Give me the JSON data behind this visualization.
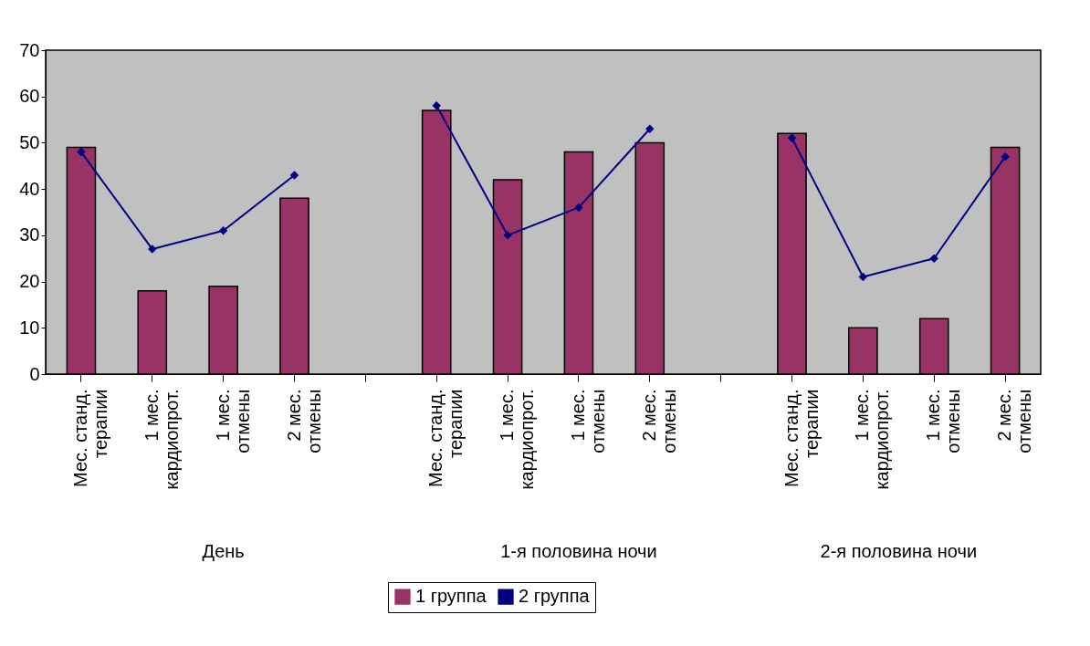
{
  "chart_data": {
    "type": "bar",
    "categories": [
      "Мес. станд. терапии",
      "1 мес. кардиопрот.",
      "1 мес. отмены",
      "2 мес. отмены",
      null,
      "Мес. станд. терапии",
      "1 мес. кардиопрот.",
      "1 мес. отмены",
      "2 мес. отмены",
      null,
      "Мес. станд. терапии",
      "1 мес. кардиопрот.",
      "1 мес. отмены",
      "2 мес. отмены"
    ],
    "series": [
      {
        "name": "1 группа",
        "color": "#993366",
        "values": [
          49,
          18,
          19,
          38,
          null,
          57,
          42,
          48,
          50,
          null,
          52,
          10,
          12,
          49
        ]
      },
      {
        "name": "2 группа",
        "type": "line",
        "color": "#000080",
        "values": [
          48,
          27,
          31,
          43,
          null,
          58,
          30,
          36,
          53,
          null,
          51,
          21,
          25,
          47
        ]
      }
    ],
    "ylim": [
      0,
      70
    ],
    "yticks": [
      0,
      10,
      20,
      30,
      40,
      50,
      60,
      70
    ],
    "grid": false,
    "legend": "bottom",
    "marker": "diamond",
    "annotations": [
      "День",
      "1-я половина ночи",
      "2-я половина ночи"
    ]
  }
}
